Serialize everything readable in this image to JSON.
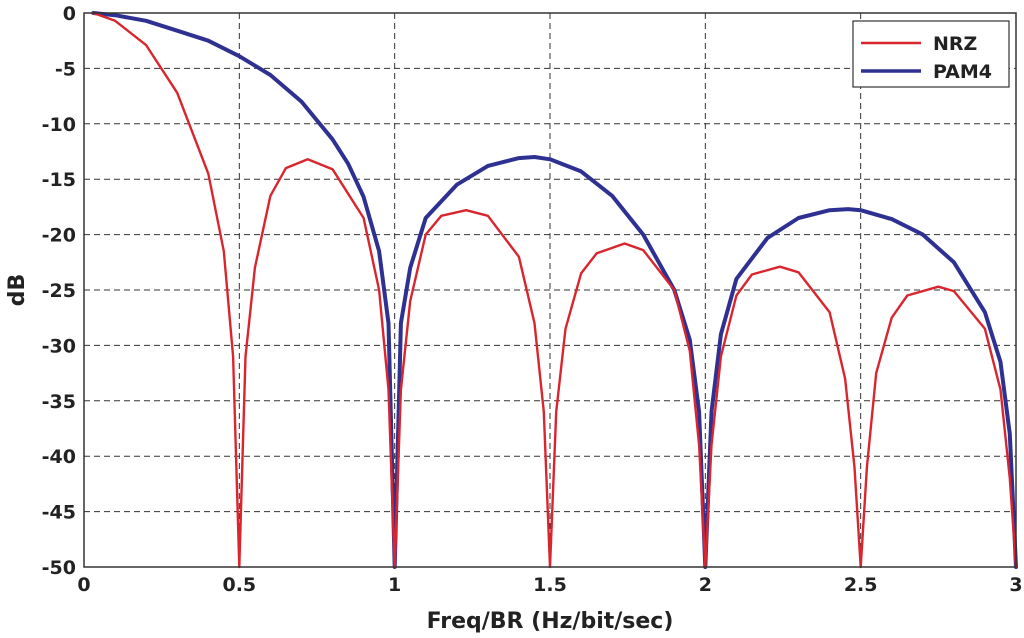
{
  "chart_data": {
    "type": "line",
    "title": "",
    "xlabel": "Freq/BR (Hz/bit/sec)",
    "ylabel": "dB",
    "xlim": [
      0,
      3
    ],
    "ylim": [
      -50,
      0
    ],
    "x_ticks": [
      "0",
      "0.5",
      "1",
      "1.5",
      "2",
      "2.5",
      "3"
    ],
    "y_ticks": [
      "0",
      "-5",
      "-10",
      "-15",
      "-20",
      "-25",
      "-30",
      "-35",
      "-40",
      "-45",
      "-50"
    ],
    "grid": true,
    "legend": "top-right",
    "series": [
      {
        "name": "NRZ",
        "color": "#d9262e",
        "x": [
          0.03,
          0.1,
          0.2,
          0.3,
          0.4,
          0.45,
          0.48,
          0.5,
          0.52,
          0.55,
          0.6,
          0.65,
          0.72,
          0.8,
          0.9,
          0.95,
          0.98,
          1.0,
          1.02,
          1.05,
          1.1,
          1.15,
          1.23,
          1.3,
          1.4,
          1.45,
          1.48,
          1.5,
          1.52,
          1.55,
          1.6,
          1.65,
          1.74,
          1.8,
          1.9,
          1.95,
          1.98,
          2.0,
          2.02,
          2.05,
          2.1,
          2.15,
          2.24,
          2.3,
          2.4,
          2.45,
          2.48,
          2.5,
          2.52,
          2.55,
          2.6,
          2.65,
          2.75,
          2.8,
          2.9,
          2.95,
          2.98,
          3.0
        ],
        "values": [
          0,
          -0.7,
          -2.9,
          -7.2,
          -14.5,
          -21.5,
          -31,
          -50,
          -31,
          -23,
          -16.5,
          -14,
          -13.2,
          -14.1,
          -18.5,
          -25,
          -34,
          -50,
          -34,
          -26,
          -20,
          -18.3,
          -17.8,
          -18.3,
          -22,
          -28,
          -36,
          -50,
          -36,
          -28.5,
          -23.5,
          -21.7,
          -20.8,
          -21.4,
          -25,
          -30.5,
          -39,
          -50,
          -39,
          -31,
          -25.5,
          -23.6,
          -22.9,
          -23.4,
          -27,
          -33,
          -41,
          -50,
          -41,
          -32.5,
          -27.5,
          -25.5,
          -24.7,
          -25.1,
          -28.5,
          -34,
          -42,
          -50
        ]
      },
      {
        "name": "PAM4",
        "color": "#2e3192",
        "x": [
          0.03,
          0.1,
          0.2,
          0.3,
          0.4,
          0.5,
          0.6,
          0.7,
          0.8,
          0.85,
          0.9,
          0.95,
          0.98,
          1.0,
          1.02,
          1.05,
          1.1,
          1.2,
          1.3,
          1.4,
          1.45,
          1.5,
          1.6,
          1.7,
          1.8,
          1.9,
          1.95,
          1.98,
          2.0,
          2.02,
          2.05,
          2.1,
          2.2,
          2.3,
          2.4,
          2.46,
          2.5,
          2.6,
          2.7,
          2.8,
          2.9,
          2.95,
          2.98,
          3.0
        ],
        "values": [
          0,
          -0.2,
          -0.7,
          -1.6,
          -2.5,
          -3.9,
          -5.6,
          -8.0,
          -11.4,
          -13.6,
          -16.6,
          -21.5,
          -28,
          -50,
          -28,
          -23,
          -18.5,
          -15.5,
          -13.8,
          -13.1,
          -13.0,
          -13.2,
          -14.3,
          -16.5,
          -20.0,
          -25.0,
          -29.5,
          -36,
          -50,
          -36,
          -29,
          -24,
          -20.3,
          -18.5,
          -17.8,
          -17.7,
          -17.8,
          -18.6,
          -20.0,
          -22.5,
          -27,
          -31.5,
          -38,
          -50
        ]
      }
    ]
  }
}
